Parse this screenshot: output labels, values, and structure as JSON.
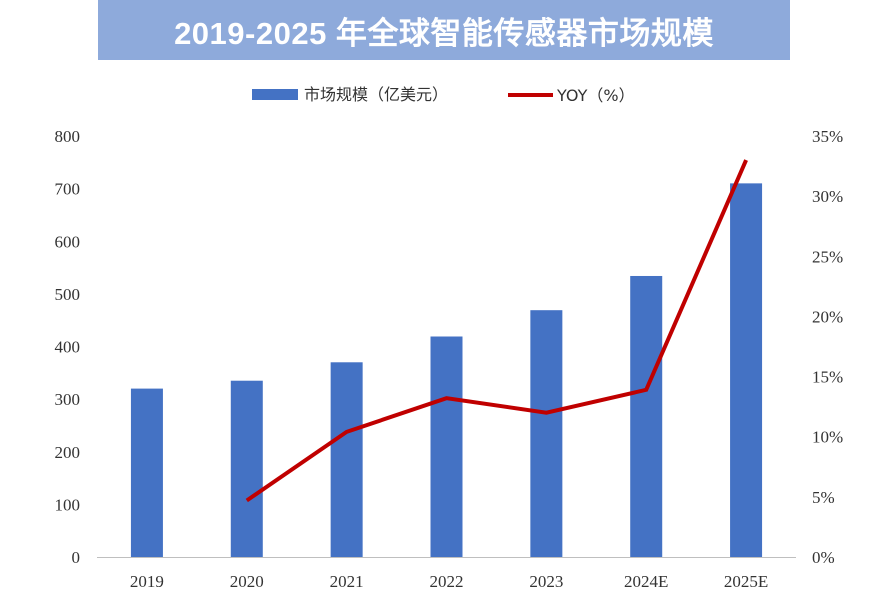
{
  "chart_data": {
    "type": "bar+line",
    "title": "2019-2025 年全球智能传感器市场规模",
    "categories": [
      "2019",
      "2020",
      "2021",
      "2022",
      "2023",
      "2024E",
      "2025E"
    ],
    "series": [
      {
        "name": "市场规模（亿美元）",
        "type": "bar",
        "axis": "left",
        "color": "#4472c4",
        "values": [
          320,
          335,
          370,
          419,
          469,
          534,
          710
        ]
      },
      {
        "name": "YOY（%）",
        "type": "line",
        "axis": "right",
        "color": "#c00000",
        "values": [
          null,
          4.7,
          10.4,
          13.2,
          12.0,
          13.9,
          33.0
        ]
      }
    ],
    "y_left": {
      "min": 0,
      "max": 800,
      "step": 100,
      "ticks": [
        "0",
        "100",
        "200",
        "300",
        "400",
        "500",
        "600",
        "700",
        "800"
      ]
    },
    "y_right": {
      "min": 0,
      "max": 35,
      "step": 5,
      "ticks": [
        "0%",
        "5%",
        "10%",
        "15%",
        "20%",
        "25%",
        "30%",
        "35%"
      ]
    },
    "legend_position": "top-center",
    "grid": false
  }
}
